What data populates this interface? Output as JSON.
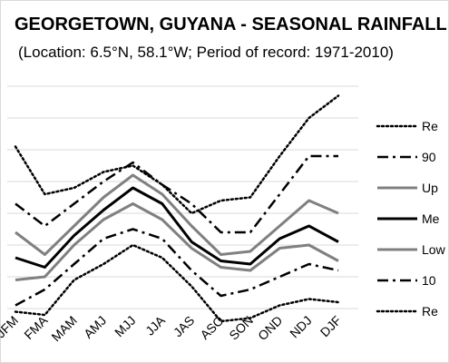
{
  "chart_data": {
    "type": "line",
    "title": "GEORGETOWN, GUYANA - SEASONAL RAINFALL",
    "subtitle": "(Location: 6.5°N, 58.1°W; Period of record: 1971-2010)",
    "categories": [
      "JFM",
      "FMA",
      "MAM",
      "AMJ",
      "MJJ",
      "JJA",
      "JAS",
      "ASO",
      "SON",
      "OND",
      "NDJ",
      "DJF"
    ],
    "xlabel": "",
    "ylabel": "",
    "ylim": [
      0,
      7
    ],
    "grid": true,
    "legend_position": "right",
    "series": [
      {
        "name": "Re",
        "color": "#000000",
        "dash": "dotted",
        "width": 2.5,
        "values": [
          5.1,
          3.6,
          3.8,
          4.3,
          4.5,
          3.9,
          3.0,
          3.4,
          3.5,
          4.8,
          6.0,
          6.7
        ]
      },
      {
        "name": "90",
        "color": "#000000",
        "dash": "dashdot",
        "width": 2.5,
        "values": [
          3.3,
          2.6,
          3.3,
          4.0,
          4.6,
          3.9,
          3.3,
          2.4,
          2.4,
          3.6,
          4.8,
          4.8
        ]
      },
      {
        "name": "Up",
        "color": "#808080",
        "dash": "solid",
        "width": 3,
        "values": [
          2.4,
          1.7,
          2.6,
          3.5,
          4.2,
          3.6,
          2.6,
          1.7,
          1.8,
          2.6,
          3.4,
          3.0
        ]
      },
      {
        "name": "Me",
        "color": "#000000",
        "dash": "solid",
        "width": 3,
        "values": [
          1.6,
          1.3,
          2.3,
          3.1,
          3.8,
          3.3,
          2.1,
          1.5,
          1.4,
          2.2,
          2.6,
          2.1
        ]
      },
      {
        "name": "Low",
        "color": "#808080",
        "dash": "solid",
        "width": 3,
        "values": [
          0.9,
          1.0,
          2.0,
          2.8,
          3.3,
          2.8,
          1.9,
          1.3,
          1.2,
          1.9,
          2.0,
          1.5
        ]
      },
      {
        "name": "10",
        "color": "#000000",
        "dash": "dashdot",
        "width": 2.5,
        "values": [
          0.1,
          0.6,
          1.4,
          2.2,
          2.5,
          2.2,
          1.2,
          0.4,
          0.6,
          1.0,
          1.4,
          1.2
        ]
      },
      {
        "name": "Re",
        "color": "#000000",
        "dash": "dotted",
        "width": 2.5,
        "values": [
          -0.1,
          -0.2,
          0.9,
          1.4,
          2.0,
          1.6,
          0.7,
          -0.4,
          -0.3,
          0.1,
          0.3,
          0.2
        ]
      }
    ]
  }
}
